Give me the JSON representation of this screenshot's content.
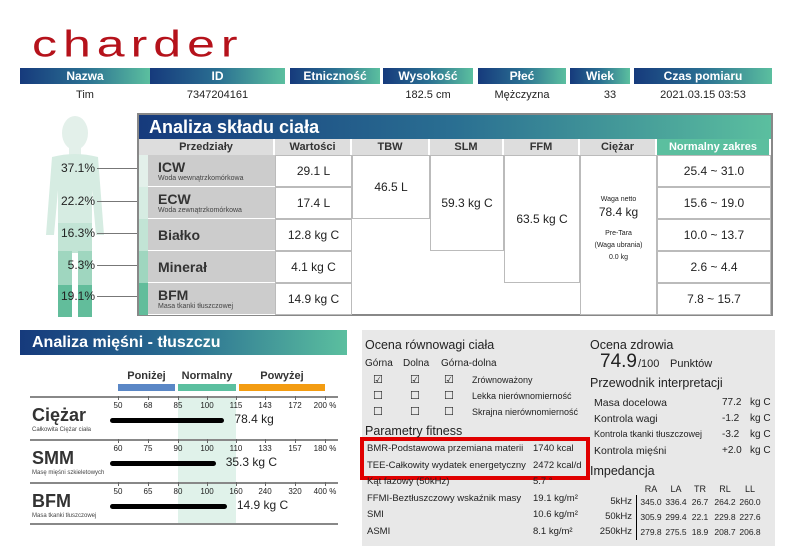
{
  "logo": "charder",
  "colors": {
    "brand_red": "#b5121b",
    "header_start": "#163a7c",
    "header_end": "#5bbf9f",
    "below": "#5a87c6",
    "normal": "#5bbf9f",
    "above": "#f39c12",
    "highlight": "#e00000"
  },
  "info": {
    "headers": [
      "Nazwa",
      "ID",
      "Etniczność",
      "Wysokość",
      "Płeć",
      "Wiek",
      "Czas pomiaru"
    ],
    "values": [
      "Tim",
      "7347204161",
      "",
      "182.5 cm",
      "Mężczyzna",
      "33",
      "2021.03.15 03:53"
    ]
  },
  "body_percent": [
    "37.1%",
    "22.2%",
    "16.3%",
    "5.3%",
    "19.1%"
  ],
  "composition": {
    "title": "Analiza składu ciała",
    "headers": [
      "Przedziały",
      "Wartości",
      "TBW",
      "SLM",
      "FFM",
      "Ciężar",
      "Normalny zakres"
    ],
    "rows": [
      {
        "name": "ICW",
        "sub": "Woda wewnątrzkomórkowa",
        "value": "29.1 L",
        "range": "25.4 ~ 31.0"
      },
      {
        "name": "ECW",
        "sub": "Woda zewnątrzkomórkowa",
        "value": "17.4 L",
        "range": "15.6 ~ 19.0"
      },
      {
        "name": "Białko",
        "sub": "",
        "value": "12.8 kg C",
        "range": "10.0 ~ 13.7"
      },
      {
        "name": "Minerał",
        "sub": "",
        "value": "4.1 kg C",
        "range": "2.6 ~ 4.4"
      },
      {
        "name": "BFM",
        "sub": "Masa tkanki tłuszczowej",
        "value": "14.9 kg C",
        "range": "7.8 ~ 15.7"
      }
    ],
    "tbw": "46.5 L",
    "slm": "59.3 kg C",
    "ffm": "63.5 kg C",
    "weight_net_label": "Waga netto",
    "weight_net": "78.4 kg",
    "pretara_label": "Pre-Tara",
    "pretara_sub": "(Waga ubrania)",
    "pretara": "0.0 kg"
  },
  "muscle_fat": {
    "title": "Analiza mięśni - tłuszczu",
    "legend": [
      "Poniżej",
      "Normalny",
      "Powyżej"
    ],
    "rows": [
      {
        "name": "Ciężar",
        "sub": "Całkowita Ciężar ciała",
        "ticks": [
          "50",
          "68",
          "85",
          "100",
          "115",
          "143",
          "172",
          "200 %"
        ],
        "value": "78.4 kg",
        "percent": 109
      },
      {
        "name": "SMM",
        "sub": "Masę mięśni szkieletowych",
        "ticks": [
          "60",
          "75",
          "90",
          "100",
          "110",
          "133",
          "157",
          "180 %"
        ],
        "value": "35.3 kg C",
        "percent": 103
      },
      {
        "name": "BFM",
        "sub": "Masa tkanki tłuszczowej",
        "ticks": [
          "50",
          "65",
          "80",
          "100",
          "160",
          "240",
          "320",
          "400 %"
        ],
        "value": "14.9 kg C",
        "percent": 141
      }
    ]
  },
  "balance": {
    "title": "Ocena równowagi ciała",
    "cols": [
      "Górna",
      "Dolna",
      "Górna-dolna"
    ],
    "rows": [
      {
        "label": "Zrównoważony",
        "checked": [
          true,
          true,
          true
        ]
      },
      {
        "label": "Lekka nierównomierność",
        "checked": [
          false,
          false,
          false
        ]
      },
      {
        "label": "Skrajna nierównomierność",
        "checked": [
          false,
          false,
          false
        ]
      }
    ]
  },
  "fitness": {
    "title": "Parametry fitness",
    "rows": [
      {
        "label": "BMR-Podstawowa przemiana materii",
        "value": "1740 kcal"
      },
      {
        "label": "TEE-Całkowity wydatek energetyczny",
        "value": "2472 kcal/d"
      },
      {
        "label": "Kąt fazowy (50kHz)",
        "value": "5.7 °"
      },
      {
        "label": "FFMI-Beztłuszczowy wskaźnik masy",
        "value": "19.1 kg/m²"
      },
      {
        "label": "SMI",
        "value": "10.6 kg/m²"
      },
      {
        "label": "ASMI",
        "value": "8.1 kg/m²"
      }
    ]
  },
  "health": {
    "title": "Ocena zdrowia",
    "score": "74.9",
    "max": "/100",
    "unit": "Punktów"
  },
  "guide": {
    "title": "Przewodnik interpretacji",
    "rows": [
      {
        "label": "Masa docelowa",
        "value": "77.2",
        "unit": "kg C"
      },
      {
        "label": "Kontrola wagi",
        "value": "-1.2",
        "unit": "kg C"
      },
      {
        "label": "Kontrola tkanki tłuszczowej",
        "value": "-3.2",
        "unit": "kg C"
      },
      {
        "label": "Kontrola mięśni",
        "value": "+2.0",
        "unit": "kg C"
      }
    ]
  },
  "impedance": {
    "title": "Impedancja",
    "cols": [
      "RA",
      "LA",
      "TR",
      "RL",
      "LL"
    ],
    "rows": [
      {
        "freq": "5kHz",
        "vals": [
          "345.0",
          "336.4",
          "26.7",
          "264.2",
          "260.0"
        ]
      },
      {
        "freq": "50kHz",
        "vals": [
          "305.9",
          "299.4",
          "22.1",
          "229.8",
          "227.6"
        ]
      },
      {
        "freq": "250kHz",
        "vals": [
          "279.8",
          "275.5",
          "18.9",
          "208.7",
          "206.8"
        ]
      }
    ]
  }
}
